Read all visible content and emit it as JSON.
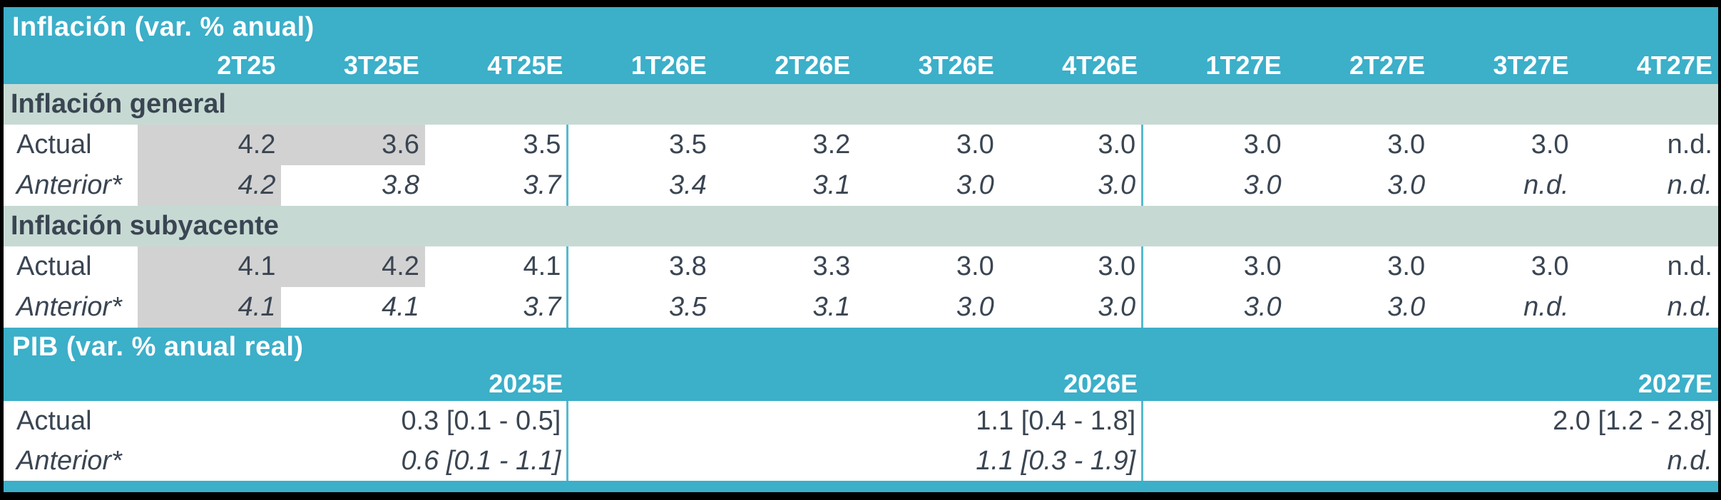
{
  "colors": {
    "teal_banner": "#3CAFC9",
    "section_band_green": "#C6DAD3",
    "highlight_gray": "#D2D2D2",
    "text_ink": "#3A4552",
    "separator_teal": "#56BACF",
    "header_text": "#FFFFFF",
    "background": "#000000"
  },
  "chart_data": {
    "type": "table",
    "title": "Inflación (var. % anual)",
    "na_label": "n.d.",
    "inflation": {
      "title": "Inflación (var. % anual)",
      "columns": [
        "2T25",
        "3T25E",
        "4T25E",
        "1T26E",
        "2T26E",
        "3T26E",
        "4T26E",
        "1T27E",
        "2T27E",
        "3T27E",
        "4T27E"
      ],
      "sections": [
        {
          "name": "Inflación general",
          "rows": [
            {
              "label": "Actual",
              "style": "normal",
              "highlight_cols": [
                0,
                1
              ],
              "values": [
                "4.2",
                "3.6",
                "3.5",
                "3.5",
                "3.2",
                "3.0",
                "3.0",
                "3.0",
                "3.0",
                "3.0",
                "n.d."
              ]
            },
            {
              "label": "Anterior*",
              "style": "italic",
              "highlight_cols": [
                0
              ],
              "values": [
                "4.2",
                "3.8",
                "3.7",
                "3.4",
                "3.1",
                "3.0",
                "3.0",
                "3.0",
                "3.0",
                "n.d.",
                "n.d."
              ]
            }
          ]
        },
        {
          "name": "Inflación subyacente",
          "rows": [
            {
              "label": "Actual",
              "style": "normal",
              "highlight_cols": [
                0,
                1
              ],
              "values": [
                "4.1",
                "4.2",
                "4.1",
                "3.8",
                "3.3",
                "3.0",
                "3.0",
                "3.0",
                "3.0",
                "3.0",
                "n.d."
              ]
            },
            {
              "label": "Anterior*",
              "style": "italic",
              "highlight_cols": [
                0
              ],
              "values": [
                "4.1",
                "4.1",
                "3.7",
                "3.5",
                "3.1",
                "3.0",
                "3.0",
                "3.0",
                "3.0",
                "n.d.",
                "n.d."
              ]
            }
          ]
        }
      ]
    },
    "gdp": {
      "title": "PIB (var. % anual real)",
      "columns": [
        "2025E",
        "2026E",
        "2027E"
      ],
      "rows": [
        {
          "label": "Actual",
          "style": "normal",
          "values": [
            "0.3 [0.1 - 0.5]",
            "1.1 [0.4 - 1.8]",
            "2.0 [1.2 - 2.8]"
          ]
        },
        {
          "label": "Anterior*",
          "style": "italic",
          "values": [
            "0.6 [0.1 - 1.1]",
            "1.1 [0.3 - 1.9]",
            "n.d."
          ]
        }
      ]
    }
  }
}
